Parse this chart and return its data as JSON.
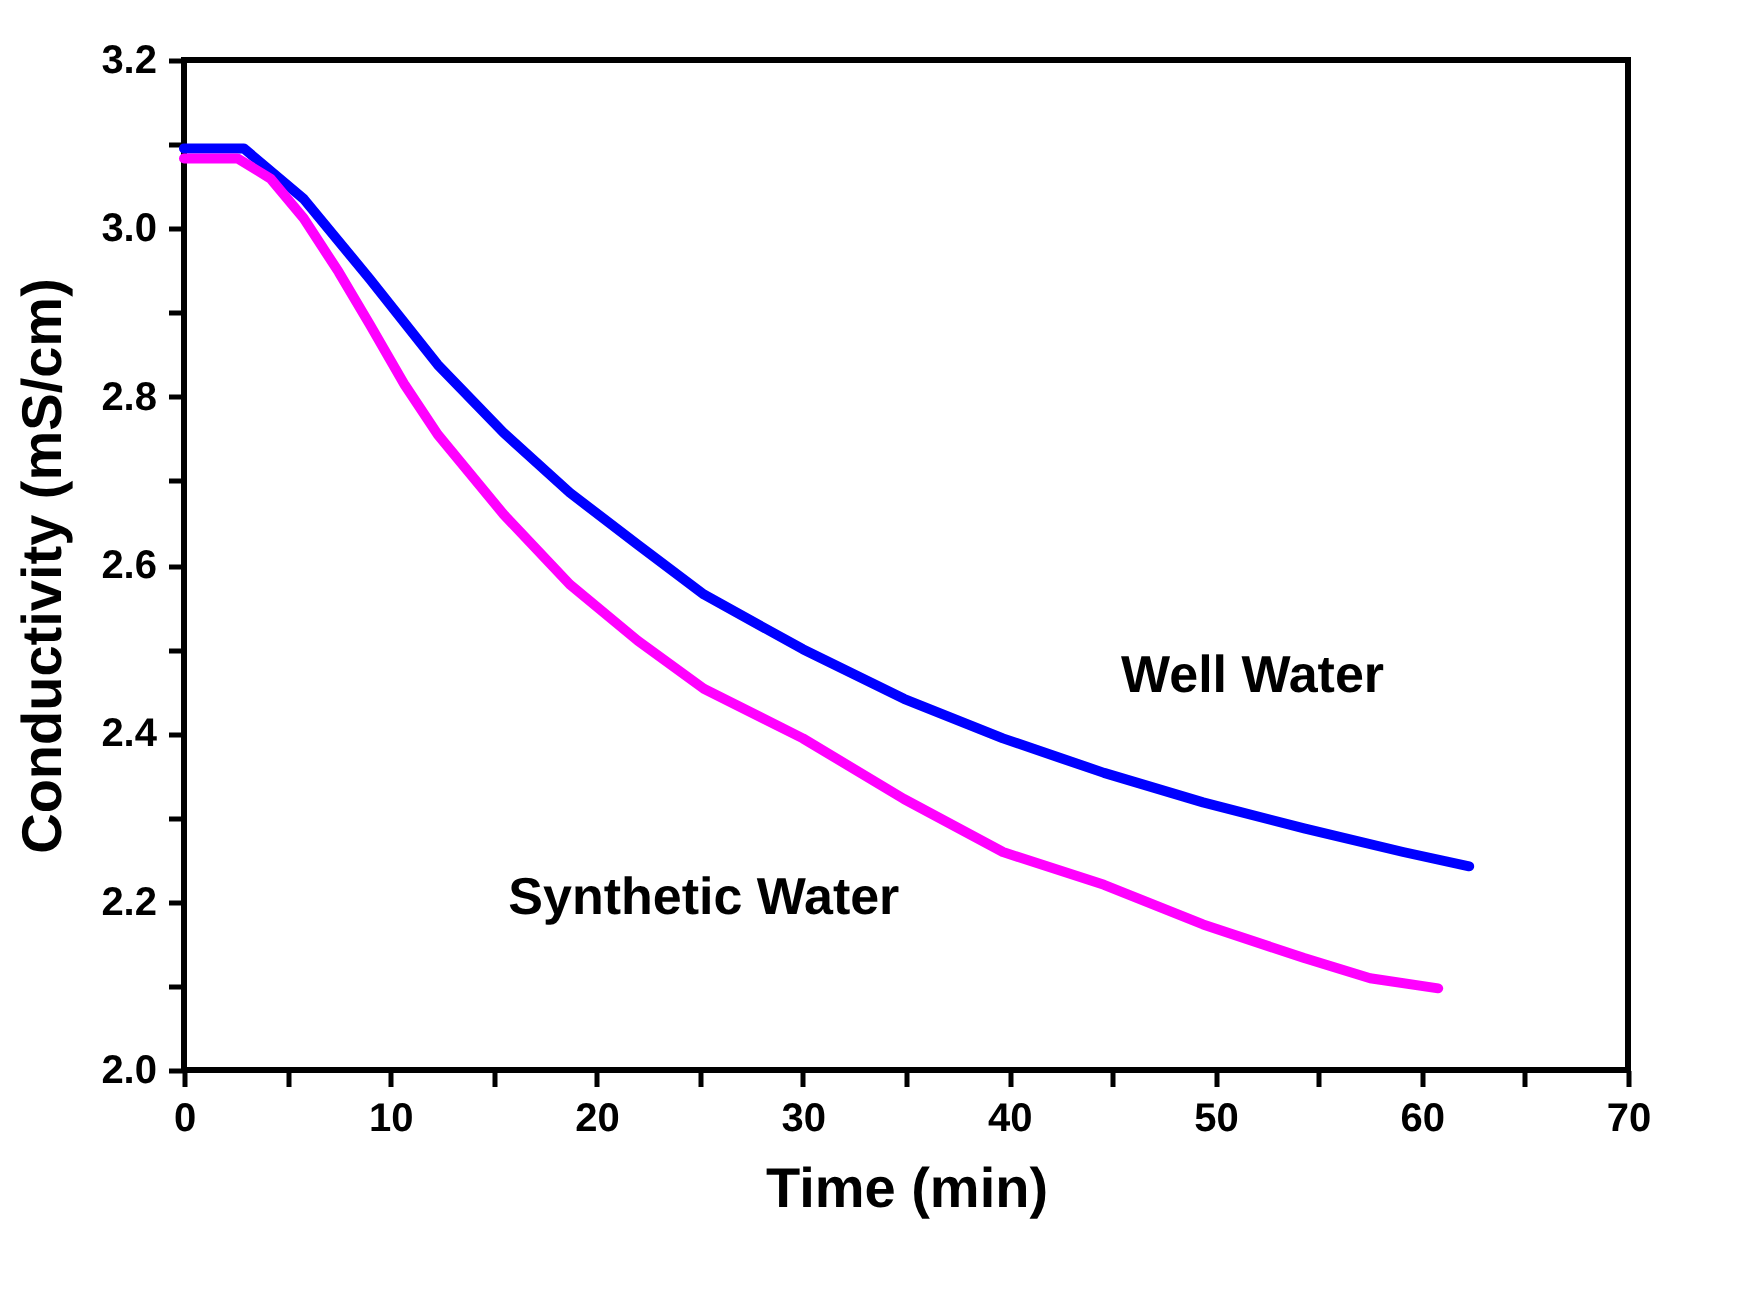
{
  "chart_data": {
    "type": "line",
    "xlabel": "Time (min)",
    "ylabel": "Conductivity (mS/cm)",
    "xlim": [
      0,
      70
    ],
    "ylim": [
      2.0,
      3.2
    ],
    "xticks": [
      0,
      {
        "value": 5,
        "label": null
      },
      10,
      {
        "value": 15,
        "label": null
      },
      20,
      {
        "value": 25,
        "label": null
      },
      30,
      {
        "value": 35,
        "label": null
      },
      40,
      {
        "value": 45,
        "label": null
      },
      50,
      {
        "value": 55,
        "label": null
      },
      60,
      {
        "value": 65,
        "label": null
      },
      70
    ],
    "yticks": [
      {
        "value": 2.0,
        "label": "2.0"
      },
      {
        "value": 2.1,
        "label": null
      },
      2.2,
      {
        "value": 2.3,
        "label": null
      },
      2.4,
      {
        "value": 2.5,
        "label": null
      },
      2.6,
      {
        "value": 2.7,
        "label": null
      },
      2.8,
      {
        "value": 2.9,
        "label": null
      },
      {
        "value": 3.0,
        "label": "3.0"
      },
      {
        "value": 3.1,
        "label": null
      },
      3.2
    ],
    "grid": false,
    "marker": "none",
    "line_style": "solid",
    "series": [
      {
        "name": "Well Water",
        "color": "#0000ff",
        "x": [
          0,
          2.9,
          5.8,
          9.0,
          12.3,
          15.5,
          18.7,
          22.0,
          25.2,
          30.0,
          34.9,
          39.7,
          44.6,
          49.4,
          54.3,
          59.1,
          62.3
        ],
        "values": [
          3.095,
          3.095,
          3.035,
          2.94,
          2.838,
          2.757,
          2.686,
          2.624,
          2.565,
          2.5,
          2.441,
          2.394,
          2.353,
          2.318,
          2.287,
          2.259,
          2.242
        ]
      },
      {
        "name": "Synthetic Water",
        "color": "#ff00ff",
        "x": [
          0,
          2.6,
          4.2,
          5.8,
          7.5,
          9.0,
          10.7,
          12.3,
          15.5,
          18.7,
          22.0,
          25.2,
          30.0,
          34.9,
          39.7,
          44.6,
          49.4,
          54.3,
          57.5,
          60.8
        ],
        "values": [
          3.083,
          3.083,
          3.059,
          3.012,
          2.948,
          2.886,
          2.814,
          2.755,
          2.66,
          2.577,
          2.51,
          2.453,
          2.394,
          2.322,
          2.259,
          2.22,
          2.173,
          2.133,
          2.109,
          2.097
        ]
      }
    ]
  }
}
